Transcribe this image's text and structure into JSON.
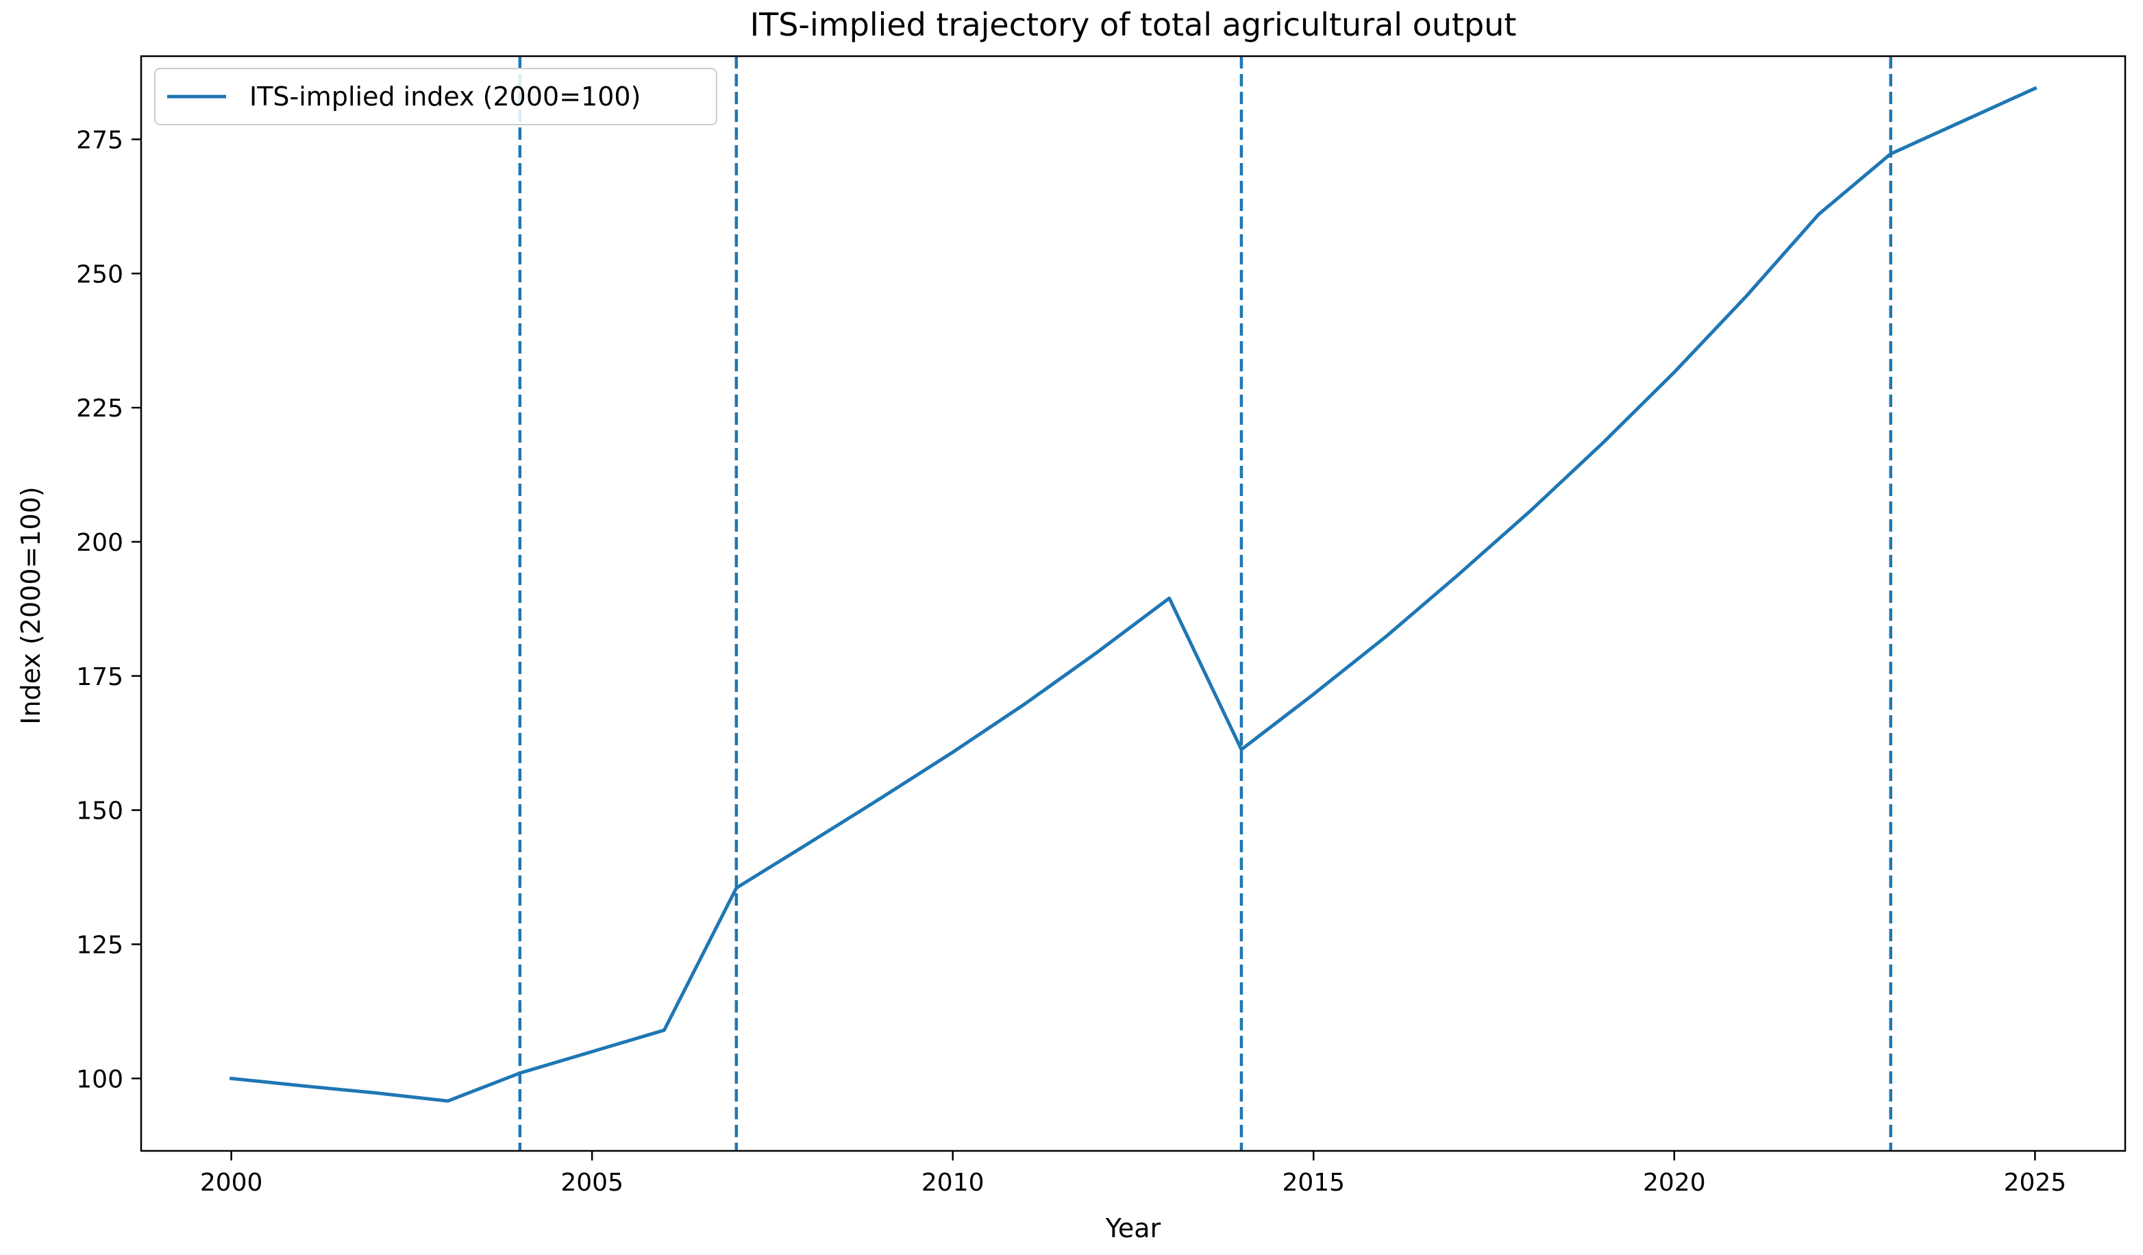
{
  "chart_data": {
    "type": "line",
    "title": "ITS-implied trajectory of total agricultural output",
    "xlabel": "Year",
    "ylabel": "Index (2000=100)",
    "xlim": [
      1998.75,
      2026.25
    ],
    "ylim": [
      86.5,
      290.5
    ],
    "xticks": [
      2000,
      2005,
      2010,
      2015,
      2020,
      2025
    ],
    "yticks": [
      100,
      125,
      150,
      175,
      200,
      225,
      250,
      275
    ],
    "grid": false,
    "legend_position": "top-left",
    "series": [
      {
        "name": "ITS-implied index (2000=100)",
        "color": "#1f77b4",
        "x": [
          2000,
          2001,
          2002,
          2003,
          2004,
          2005,
          2006,
          2007,
          2008,
          2009,
          2010,
          2011,
          2012,
          2013,
          2014,
          2015,
          2016,
          2017,
          2018,
          2019,
          2020,
          2021,
          2022,
          2023,
          2024,
          2025
        ],
        "y": [
          100,
          98.6,
          97.3,
          95.8,
          101.0,
          105.0,
          109.0,
          135.5,
          143.8,
          152.2,
          160.8,
          169.8,
          179.4,
          189.5,
          161.3,
          171.6,
          182.3,
          193.8,
          205.7,
          218.3,
          231.6,
          245.8,
          261.0,
          272.3,
          278.4,
          284.5
        ]
      }
    ],
    "vlines": {
      "x": [
        2004,
        2007,
        2014,
        2023
      ],
      "color": "#1f77b4",
      "style": "dashed"
    }
  }
}
